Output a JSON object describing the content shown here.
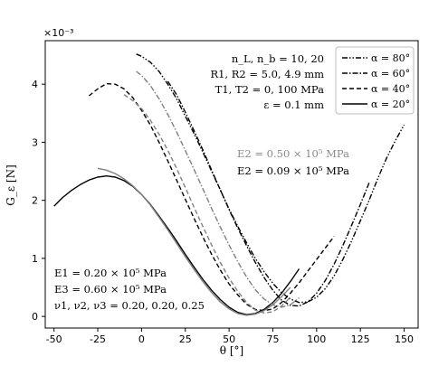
{
  "chart_data": {
    "type": "line",
    "xlabel": "θ [°]",
    "ylabel": "G_ε [N]",
    "scale_label": "×10⁻³",
    "xlim": [
      -55,
      158
    ],
    "ylim": [
      -0.2,
      4.75
    ],
    "xticks": [
      -50,
      -25,
      0,
      25,
      50,
      75,
      100,
      125,
      150
    ],
    "yticks": [
      0,
      1,
      2,
      3,
      4
    ],
    "legend_position": "top-right",
    "params_text": [
      "n_L, n_b = 10, 20",
      "R1, R2 = 5.0, 4.9 mm",
      "T1, T2 = 0, 100 MPa",
      "ε = 0.1 mm"
    ],
    "material_text": [
      "E1 = 0.20 × 10⁵ MPa",
      "E3 = 0.60 × 10⁵ MPa",
      "ν1, ν2, ν3 = 0.20, 0.20, 0.25"
    ],
    "e2_labels": {
      "gray": "E2 = 0.50 × 10⁵ MPa",
      "black": "E2 = 0.09 × 10⁵ MPa"
    },
    "colors": {
      "black": "#000000",
      "gray": "#808080"
    },
    "series": [
      {
        "name": "α = 80°",
        "style": "dashdotdot",
        "color": "black",
        "x": [
          -3,
          0,
          5,
          10,
          15,
          20,
          25,
          30,
          35,
          40,
          45,
          50,
          55,
          60,
          65,
          70,
          75,
          80,
          85,
          90,
          95,
          100,
          105,
          110,
          115,
          120,
          125,
          130,
          135,
          140,
          145,
          150
        ],
        "y": [
          4.52,
          4.48,
          4.38,
          4.22,
          4.0,
          3.75,
          3.45,
          3.15,
          2.83,
          2.5,
          2.18,
          1.85,
          1.55,
          1.27,
          1.0,
          0.77,
          0.57,
          0.41,
          0.3,
          0.24,
          0.25,
          0.33,
          0.48,
          0.7,
          0.98,
          1.3,
          1.65,
          2.0,
          2.38,
          2.73,
          3.03,
          3.3
        ]
      },
      {
        "name": "α = 60°",
        "style": "dashdot",
        "color": "black",
        "x": [
          15,
          20,
          25,
          30,
          35,
          40,
          45,
          50,
          55,
          60,
          65,
          70,
          75,
          80,
          85,
          90,
          95,
          100,
          105,
          110,
          115,
          120,
          125,
          130
        ],
        "y": [
          4.05,
          3.82,
          3.52,
          3.2,
          2.87,
          2.52,
          2.18,
          1.84,
          1.52,
          1.22,
          0.93,
          0.67,
          0.45,
          0.28,
          0.19,
          0.18,
          0.25,
          0.4,
          0.62,
          0.9,
          1.22,
          1.57,
          1.93,
          2.3
        ]
      },
      {
        "name": "α = 40°",
        "style": "dashed",
        "color": "black",
        "x": [
          -30,
          -25,
          -20,
          -15,
          -10,
          -5,
          0,
          5,
          10,
          15,
          20,
          25,
          30,
          35,
          40,
          45,
          50,
          55,
          60,
          65,
          70,
          75,
          80,
          85,
          90,
          95,
          100,
          105,
          110
        ],
        "y": [
          3.8,
          3.92,
          4.01,
          4.0,
          3.92,
          3.77,
          3.55,
          3.3,
          3.0,
          2.68,
          2.35,
          2.02,
          1.69,
          1.37,
          1.07,
          0.8,
          0.56,
          0.37,
          0.21,
          0.12,
          0.1,
          0.13,
          0.24,
          0.4,
          0.58,
          0.78,
          0.98,
          1.18,
          1.38
        ]
      },
      {
        "name": "α = 20°",
        "style": "solid",
        "color": "black",
        "x": [
          -50,
          -45,
          -40,
          -35,
          -30,
          -25,
          -20,
          -15,
          -10,
          -5,
          0,
          5,
          10,
          15,
          20,
          25,
          30,
          35,
          40,
          45,
          50,
          55,
          60,
          65,
          70,
          75,
          80,
          85,
          90
        ],
        "y": [
          1.9,
          2.05,
          2.17,
          2.27,
          2.35,
          2.4,
          2.42,
          2.4,
          2.34,
          2.24,
          2.1,
          1.93,
          1.73,
          1.52,
          1.3,
          1.07,
          0.85,
          0.64,
          0.45,
          0.29,
          0.16,
          0.07,
          0.03,
          0.05,
          0.12,
          0.24,
          0.4,
          0.6,
          0.82
        ]
      },
      {
        "style": "dashdot",
        "color": "gray",
        "x": [
          -3,
          0,
          5,
          10,
          15,
          20,
          25,
          30,
          35,
          40,
          45,
          50,
          55,
          60,
          65,
          70,
          75,
          80,
          85,
          90
        ],
        "y": [
          4.22,
          4.15,
          3.98,
          3.75,
          3.48,
          3.18,
          2.86,
          2.53,
          2.2,
          1.86,
          1.54,
          1.23,
          0.94,
          0.68,
          0.46,
          0.3,
          0.2,
          0.16,
          0.2,
          0.32
        ]
      },
      {
        "style": "dashed",
        "color": "gray",
        "x": [
          -10,
          -5,
          0,
          5,
          10,
          15,
          20,
          25,
          30,
          35,
          40,
          45,
          50,
          55,
          60,
          65,
          70,
          75,
          80,
          85
        ],
        "y": [
          3.82,
          3.72,
          3.58,
          3.38,
          3.14,
          2.86,
          2.55,
          2.22,
          1.88,
          1.55,
          1.23,
          0.93,
          0.66,
          0.43,
          0.24,
          0.11,
          0.06,
          0.08,
          0.18,
          0.33
        ]
      },
      {
        "style": "solid",
        "color": "gray",
        "x": [
          -25,
          -20,
          -15,
          -10,
          -5,
          0,
          5,
          10,
          15,
          20,
          25,
          30,
          35,
          40,
          45,
          50,
          55,
          60,
          65,
          70,
          75,
          80,
          85
        ],
        "y": [
          2.55,
          2.52,
          2.46,
          2.37,
          2.25,
          2.1,
          1.92,
          1.71,
          1.49,
          1.26,
          1.03,
          0.81,
          0.6,
          0.41,
          0.25,
          0.13,
          0.05,
          0.02,
          0.04,
          0.1,
          0.2,
          0.34,
          0.5
        ]
      }
    ]
  }
}
